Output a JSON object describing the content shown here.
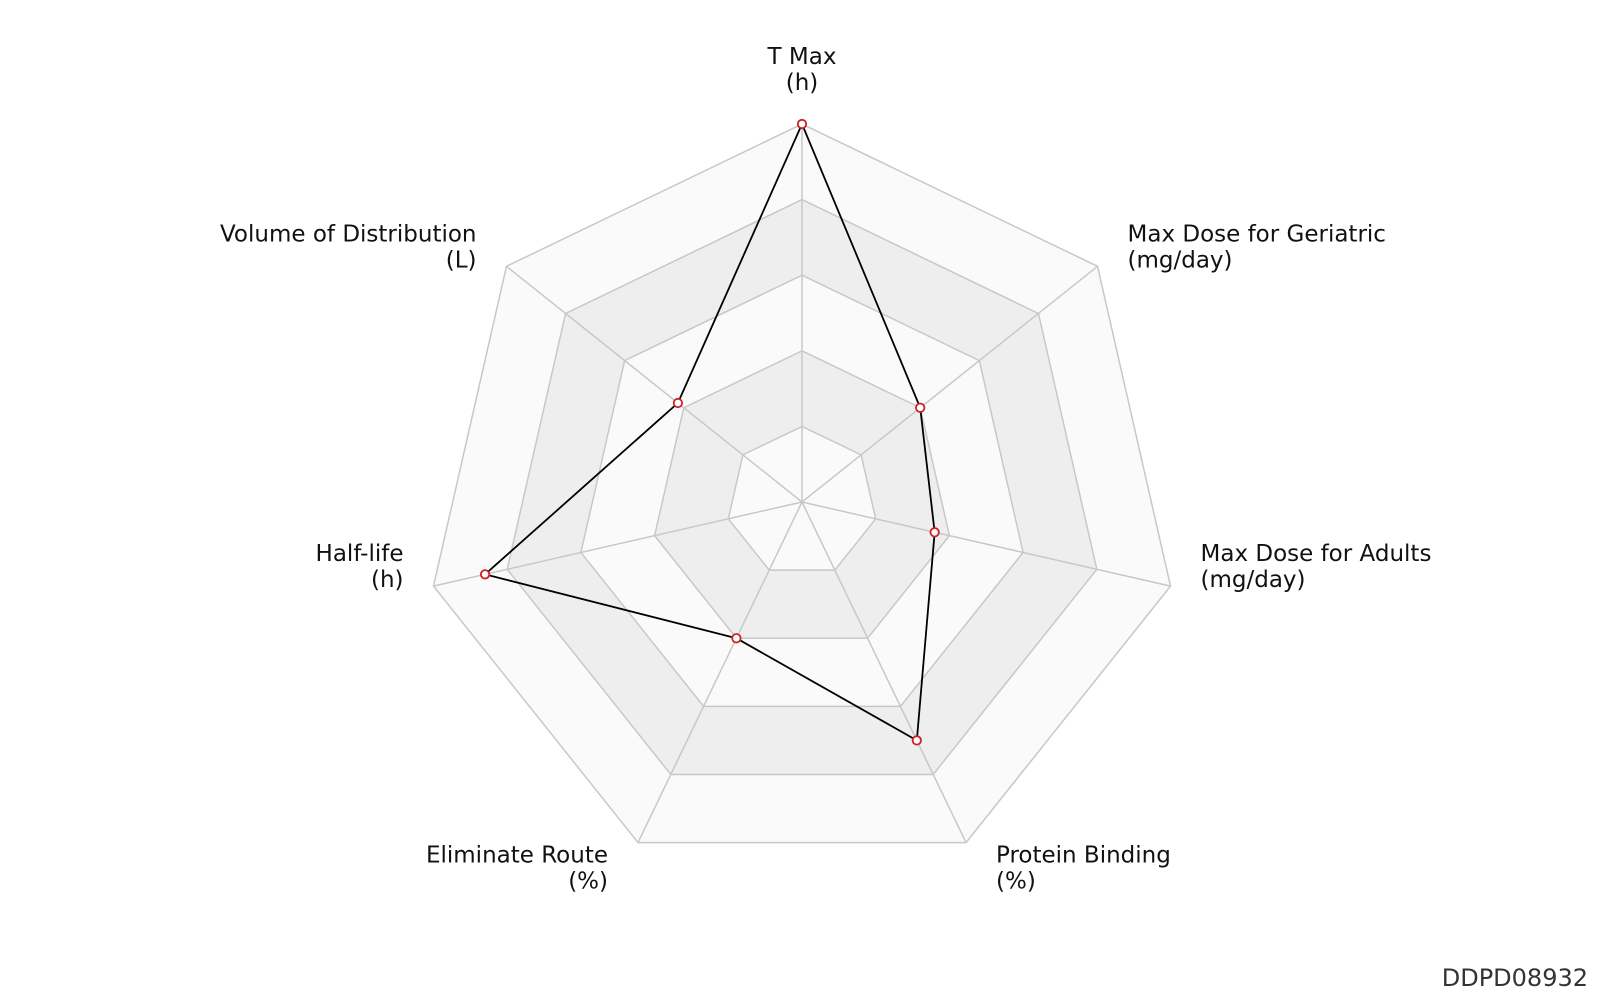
{
  "chart_data": {
    "type": "radar",
    "axes": [
      {
        "name": "T Max",
        "unit": "(h)"
      },
      {
        "name": "Max Dose for Geriatric",
        "unit": "(mg/day)"
      },
      {
        "name": "Max Dose for Adults",
        "unit": "(mg/day)"
      },
      {
        "name": "Protein Binding",
        "unit": "(%)"
      },
      {
        "name": "Eliminate Route",
        "unit": "(%)"
      },
      {
        "name": "Half-life",
        "unit": "(h)"
      },
      {
        "name": "Volume of Distribution",
        "unit": "(L)"
      }
    ],
    "values": [
      1.0,
      0.4,
      0.36,
      0.7,
      0.4,
      0.86,
      0.42
    ],
    "range": [
      0,
      1
    ],
    "rings": 5,
    "band_fill": "#eeeeee",
    "outer_fill": "#fafafa",
    "grid_color": "#c8c8c8",
    "line_color": "#000000",
    "marker_color": "#cc2222"
  },
  "footer": {
    "id": "DDPD08932"
  }
}
